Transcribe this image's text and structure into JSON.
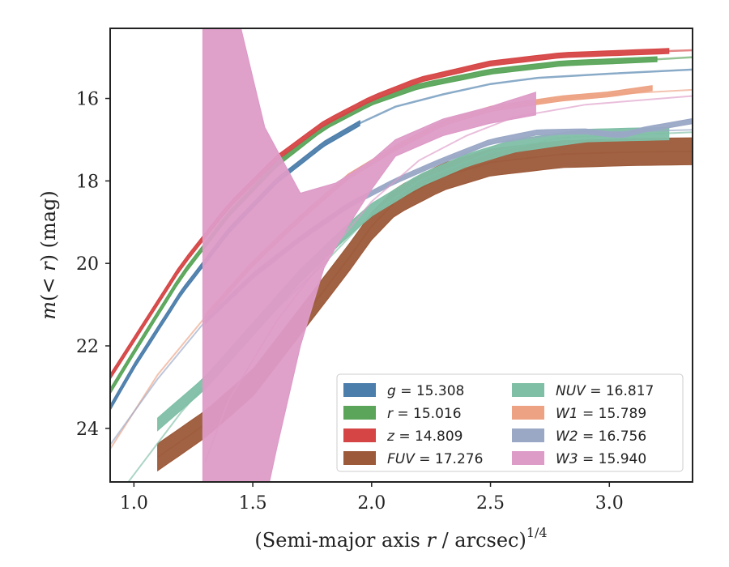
{
  "chart_data": {
    "type": "line",
    "xlabel": "(Semi-major axis r / arcsec)^1/4",
    "ylabel": "m(< r) (mag)",
    "xlim": [
      0.9,
      3.35
    ],
    "ylim": [
      25.3,
      14.3
    ],
    "y_inverted": true,
    "x_ticks": [
      1.0,
      1.5,
      2.0,
      2.5,
      3.0
    ],
    "x_tick_labels": [
      "1.0",
      "1.5",
      "2.0",
      "2.5",
      "3.0"
    ],
    "y_ticks": [
      16,
      18,
      20,
      22,
      24
    ],
    "y_tick_labels": [
      "16",
      "18",
      "20",
      "22",
      "24"
    ],
    "grid": false,
    "legend_position": "lower-right",
    "legend_columns": 2,
    "series": [
      {
        "name": "g = 15.308",
        "band": "g",
        "value": "15.308",
        "color": "#4c7eab",
        "data_range": [
          0.9,
          1.95
        ],
        "data_width": 0.12,
        "data": [
          [
            0.9,
            23.5
          ],
          [
            1.0,
            22.5
          ],
          [
            1.2,
            20.7
          ],
          [
            1.4,
            19.2
          ],
          [
            1.6,
            18.0
          ],
          [
            1.8,
            17.1
          ],
          [
            1.95,
            16.6
          ]
        ],
        "model": [
          [
            1.95,
            16.6
          ],
          [
            2.1,
            16.2
          ],
          [
            2.3,
            15.9
          ],
          [
            2.5,
            15.65
          ],
          [
            2.7,
            15.5
          ],
          [
            3.0,
            15.4
          ],
          [
            3.35,
            15.3
          ]
        ],
        "model_width": 2.5
      },
      {
        "name": "r = 15.016",
        "band": "r",
        "value": "15.016",
        "color": "#5aa55a",
        "data_range": [
          0.9,
          3.2
        ],
        "data_width": 0.12,
        "data": [
          [
            0.9,
            23.1
          ],
          [
            1.0,
            22.15
          ],
          [
            1.2,
            20.3
          ],
          [
            1.4,
            18.8
          ],
          [
            1.6,
            17.6
          ],
          [
            1.8,
            16.7
          ],
          [
            2.0,
            16.1
          ],
          [
            2.2,
            15.7
          ],
          [
            2.5,
            15.35
          ],
          [
            2.8,
            15.15
          ],
          [
            3.2,
            15.05
          ]
        ],
        "model": [
          [
            3.2,
            15.05
          ],
          [
            3.35,
            15.0
          ]
        ],
        "model_width": 2.5
      },
      {
        "name": "z = 14.809",
        "band": "z",
        "value": "14.809",
        "color": "#d64545",
        "data_range": [
          0.9,
          3.25
        ],
        "data_width": 0.12,
        "data": [
          [
            0.9,
            22.75
          ],
          [
            1.0,
            21.85
          ],
          [
            1.2,
            20.05
          ],
          [
            1.4,
            18.6
          ],
          [
            1.6,
            17.45
          ],
          [
            1.8,
            16.6
          ],
          [
            2.0,
            16.0
          ],
          [
            2.2,
            15.55
          ],
          [
            2.5,
            15.15
          ],
          [
            2.8,
            14.95
          ],
          [
            3.25,
            14.85
          ]
        ],
        "model": [
          [
            3.25,
            14.85
          ],
          [
            3.35,
            14.83
          ]
        ],
        "model_width": 2.5
      },
      {
        "name": "FUV = 17.276",
        "band": "FUV",
        "value": "17.276",
        "color": "#9c5a3a",
        "data_range": [
          1.1,
          3.35
        ],
        "data_width": 0.65,
        "data": [
          [
            1.1,
            24.7
          ],
          [
            1.3,
            23.9
          ],
          [
            1.5,
            22.9
          ],
          [
            1.7,
            21.4
          ],
          [
            1.9,
            19.9
          ],
          [
            2.0,
            19.1
          ],
          [
            2.1,
            18.5
          ],
          [
            2.3,
            17.9
          ],
          [
            2.5,
            17.55
          ],
          [
            2.8,
            17.35
          ],
          [
            3.1,
            17.3
          ],
          [
            3.35,
            17.28
          ]
        ],
        "model": [
          [
            1.1,
            24.7
          ],
          [
            1.3,
            23.9
          ],
          [
            1.5,
            22.9
          ],
          [
            1.7,
            21.4
          ],
          [
            1.9,
            19.9
          ],
          [
            2.0,
            19.1
          ],
          [
            2.1,
            18.5
          ],
          [
            2.3,
            17.9
          ],
          [
            2.5,
            17.55
          ],
          [
            2.8,
            17.35
          ],
          [
            3.1,
            17.3
          ],
          [
            3.35,
            17.28
          ]
        ],
        "model_width": 2.0
      },
      {
        "name": "NUV = 16.817",
        "band": "NUV",
        "value": "16.817",
        "color": "#7fbfa6",
        "data_range": [
          1.1,
          3.25
        ],
        "data_width": 0.3,
        "data": [
          [
            1.1,
            23.9
          ],
          [
            1.3,
            22.9
          ],
          [
            1.5,
            21.6
          ],
          [
            1.7,
            20.3
          ],
          [
            1.9,
            19.2
          ],
          [
            2.0,
            18.7
          ],
          [
            2.2,
            18.0
          ],
          [
            2.4,
            17.5
          ],
          [
            2.6,
            17.15
          ],
          [
            2.9,
            16.9
          ],
          [
            3.25,
            16.85
          ]
        ],
        "model": [
          [
            0.95,
            25.5
          ],
          [
            1.2,
            23.6
          ],
          [
            1.4,
            22.3
          ],
          [
            1.6,
            21.1
          ],
          [
            1.8,
            20.0
          ],
          [
            2.0,
            18.8
          ],
          [
            2.2,
            18.0
          ],
          [
            2.5,
            17.3
          ],
          [
            2.8,
            16.95
          ],
          [
            3.35,
            16.82
          ]
        ],
        "model_width": 2.0
      },
      {
        "name": "W1 = 15.789",
        "band": "W1",
        "value": "15.789",
        "color": "#eda283",
        "data_range": [
          1.3,
          3.18
        ],
        "data_width": 0.12,
        "data": [
          [
            1.3,
            21.3
          ],
          [
            1.5,
            20.0
          ],
          [
            1.7,
            18.9
          ],
          [
            1.9,
            17.9
          ],
          [
            2.1,
            17.2
          ],
          [
            2.3,
            16.6
          ],
          [
            2.5,
            16.25
          ],
          [
            2.8,
            16.0
          ],
          [
            3.0,
            15.9
          ],
          [
            3.18,
            15.75
          ]
        ],
        "model": [
          [
            0.9,
            24.5
          ],
          [
            1.1,
            22.7
          ],
          [
            1.3,
            21.3
          ],
          [
            1.5,
            20.0
          ],
          [
            1.7,
            18.9
          ],
          [
            1.9,
            17.9
          ],
          [
            2.1,
            17.2
          ],
          [
            2.3,
            16.6
          ],
          [
            2.5,
            16.25
          ],
          [
            2.8,
            16.0
          ],
          [
            3.0,
            15.9
          ],
          [
            3.35,
            15.79
          ]
        ],
        "model_width": 2.0
      },
      {
        "name": "W2 = 16.756",
        "band": "W2",
        "value": "16.756",
        "color": "#9aa8c6",
        "data_range": [
          1.3,
          3.35
        ],
        "data_width": 0.12,
        "data": [
          [
            1.3,
            21.4
          ],
          [
            1.5,
            20.3
          ],
          [
            1.7,
            19.4
          ],
          [
            1.9,
            18.6
          ],
          [
            2.1,
            18.0
          ],
          [
            2.3,
            17.5
          ],
          [
            2.5,
            17.05
          ],
          [
            2.7,
            16.82
          ],
          [
            2.9,
            16.8
          ],
          [
            3.05,
            16.9
          ],
          [
            3.15,
            16.75
          ],
          [
            3.35,
            16.55
          ]
        ],
        "model": [
          [
            0.9,
            24.4
          ],
          [
            1.1,
            22.8
          ],
          [
            1.3,
            21.4
          ],
          [
            1.5,
            20.3
          ],
          [
            1.7,
            19.4
          ],
          [
            1.9,
            18.6
          ],
          [
            2.1,
            18.0
          ],
          [
            2.3,
            17.5
          ],
          [
            2.5,
            17.1
          ],
          [
            2.8,
            16.85
          ],
          [
            3.35,
            16.76
          ]
        ],
        "model_width": 2.0
      },
      {
        "name": "W3 = 15.940",
        "band": "W3",
        "value": "15.940",
        "color": "#dd9bc7",
        "data_range": [
          1.29,
          2.69
        ],
        "data_upper": [
          [
            1.29,
            14.3
          ],
          [
            1.45,
            14.3
          ],
          [
            1.55,
            16.7
          ],
          [
            1.7,
            18.3
          ],
          [
            1.85,
            18.05
          ],
          [
            2.0,
            17.5
          ],
          [
            2.1,
            17.0
          ],
          [
            2.3,
            16.5
          ],
          [
            2.5,
            16.2
          ],
          [
            2.58,
            16.05
          ],
          [
            2.69,
            15.85
          ]
        ],
        "data_lower": [
          [
            2.69,
            16.4
          ],
          [
            2.5,
            16.6
          ],
          [
            2.3,
            16.9
          ],
          [
            2.1,
            17.4
          ],
          [
            2.0,
            18.2
          ],
          [
            1.9,
            19.1
          ],
          [
            1.8,
            20.1
          ],
          [
            1.7,
            22.0
          ],
          [
            1.6,
            24.5
          ],
          [
            1.57,
            25.3
          ],
          [
            1.29,
            25.3
          ]
        ],
        "model": [
          [
            1.3,
            24.8
          ],
          [
            1.4,
            23.3
          ],
          [
            1.6,
            21.4
          ],
          [
            1.8,
            19.9
          ],
          [
            2.0,
            18.5
          ],
          [
            2.2,
            17.5
          ],
          [
            2.4,
            16.9
          ],
          [
            2.6,
            16.45
          ],
          [
            2.9,
            16.15
          ],
          [
            3.35,
            15.94
          ]
        ],
        "model_width": 2.0
      }
    ]
  }
}
